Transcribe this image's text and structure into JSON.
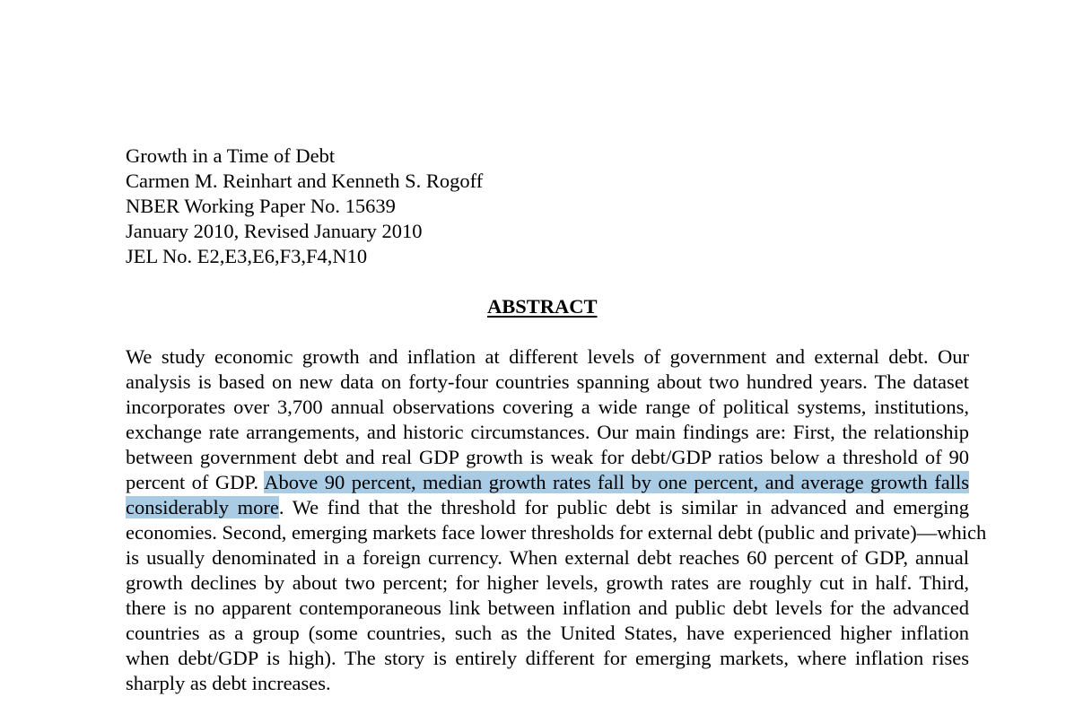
{
  "header": {
    "title": "Growth in a Time of Debt",
    "authors": "Carmen M. Reinhart and Kenneth S. Rogoff",
    "series": "NBER Working Paper No. 15639",
    "date": "January 2010, Revised January 2010",
    "jel": "JEL No. E2,E3,E6,F3,F4,N10"
  },
  "abstract": {
    "heading": "ABSTRACT",
    "l1": "We study economic growth and inflation at different levels of government and external debt.  Our",
    "l2": "analysis is based on new data on forty-four countries spanning about two hundred years.  The dataset",
    "l3": "incorporates over 3,700 annual observations covering a wide range of political systems, institutions,",
    "l4": "exchange rate arrangements, and historic circumstances.  Our main findings are:  First, the relationship",
    "l5": "between government debt and real GDP growth is weak for debt/GDP ratios below a threshold of 90",
    "l6_pre": "percent of GDP.  ",
    "l6_hl": "Above 90 percent, median growth rates fall by one percent, and average growth falls",
    "l7_hl": "considerably more",
    "l7_post": ".  We find that the threshold for public debt is similar in advanced and emerging",
    "l8": "economies.  Second, emerging markets face lower thresholds for external debt (public and private)—which",
    "l9": "is usually denominated in a foreign currency.  When external debt reaches 60 percent of GDP, annual",
    "l10": "growth declines by about two percent; for higher levels, growth rates are roughly cut in half.  Third,",
    "l11": "there is no apparent contemporaneous link between inflation and public debt levels for the advanced",
    "l12": "countries as a group (some countries, such as the United States, have experienced higher inflation",
    "l13": "when debt/GDP is high).  The story is entirely different for emerging markets, where inflation  rises",
    "l14": "sharply as debt increases."
  },
  "colors": {
    "highlight": "#a9cbe3",
    "text": "#000000",
    "background": "#ffffff"
  }
}
